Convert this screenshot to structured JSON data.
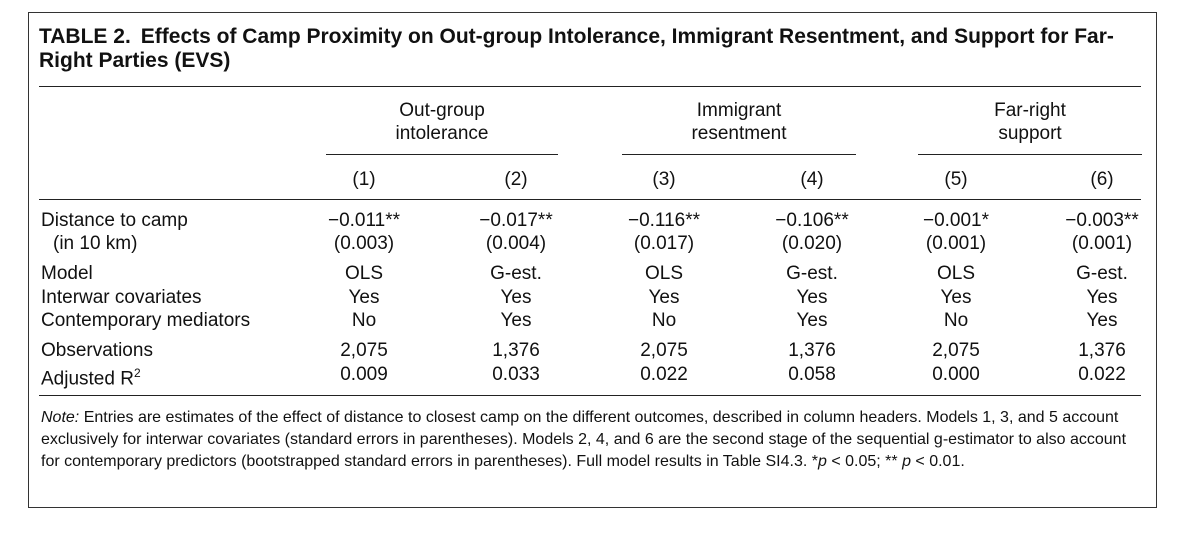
{
  "table": {
    "label": "TABLE 2.",
    "title": "Effects of Camp Proximity on Out-group Intolerance, Immigrant Resentment, and Support for Far-Right Parties (EVS)",
    "column_groups": [
      {
        "line1": "Out-group",
        "line2": "intolerance"
      },
      {
        "line1": "Immigrant",
        "line2": "resentment"
      },
      {
        "line1": "Far-right",
        "line2": "support"
      }
    ],
    "column_numbers": [
      "(1)",
      "(2)",
      "(3)",
      "(4)",
      "(5)",
      "(6)"
    ],
    "rows": [
      {
        "label": "Distance to camp",
        "values": [
          "−0.011**",
          "−0.017**",
          "−0.116**",
          "−0.106**",
          "−0.001*",
          "−0.003**"
        ]
      },
      {
        "label": "(in 10 km)",
        "values": [
          "(0.003)",
          "(0.004)",
          "(0.017)",
          "(0.020)",
          "(0.001)",
          "(0.001)"
        ]
      },
      {
        "label": "Model",
        "values": [
          "OLS",
          "G-est.",
          "OLS",
          "G-est.",
          "OLS",
          "G-est."
        ]
      },
      {
        "label": "Interwar covariates",
        "values": [
          "Yes",
          "Yes",
          "Yes",
          "Yes",
          "Yes",
          "Yes"
        ]
      },
      {
        "label": "Contemporary mediators",
        "values": [
          "No",
          "Yes",
          "No",
          "Yes",
          "No",
          "Yes"
        ]
      },
      {
        "label": "Observations",
        "values": [
          "2,075",
          "1,376",
          "2,075",
          "1,376",
          "2,075",
          "1,376"
        ]
      },
      {
        "label": "Adjusted R",
        "label_sup": "2",
        "values": [
          "0.009",
          "0.033",
          "0.022",
          "0.058",
          "0.000",
          "0.022"
        ]
      }
    ],
    "note_label": "Note:",
    "note_text": "Entries are estimates of the effect of distance to closest camp on the different outcomes, described in column headers. Models 1, 3, and 5 account exclusively for interwar covariates (standard errors in parentheses). Models 2, 4, and 6 are the second stage of the sequential g-estimator to also account for contemporary predictors (bootstrapped standard errors in parentheses). Full model results in Table SI4.3. *",
    "note_p1": "p",
    "note_mid": " < 0.05; ** ",
    "note_p2": "p",
    "note_end": " < 0.01."
  }
}
